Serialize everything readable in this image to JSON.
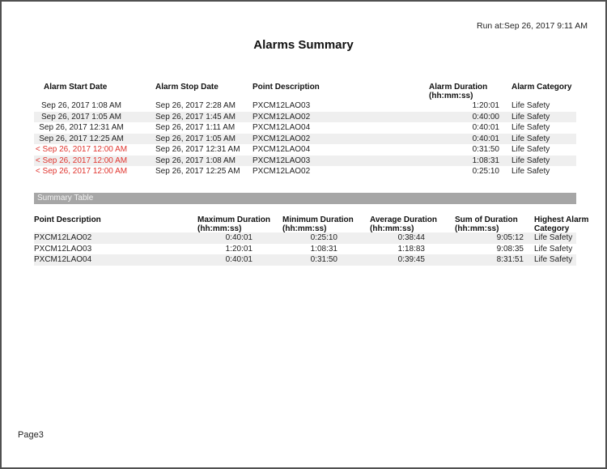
{
  "page": {
    "run_at": "Run at:Sep 26, 2017 9:11 AM",
    "title": "Alarms Summary",
    "page_number": "Page3"
  },
  "colors": {
    "flagged_red": "#e0352f",
    "row_stripe": "#efefef",
    "summary_bar_bg": "#a6a6a6",
    "summary_bar_text": "#f2f2f2",
    "page_border": "#505050"
  },
  "alarms_table": {
    "headers": {
      "start": "Alarm Start Date",
      "stop": "Alarm Stop Date",
      "point": "Point Description",
      "duration_line1": "Alarm Duration",
      "duration_line2": "(hh:mm:ss)",
      "category": "Alarm Category"
    },
    "rows": [
      {
        "start": "Sep 26, 2017 1:08 AM",
        "flagged": false,
        "stop": "Sep 26, 2017 2:28 AM",
        "point": "PXCM12LAO03",
        "duration": "1:20:01",
        "category": "Life Safety"
      },
      {
        "start": "Sep 26, 2017 1:05 AM",
        "flagged": false,
        "stop": "Sep 26, 2017 1:45 AM",
        "point": "PXCM12LAO02",
        "duration": "0:40:00",
        "category": "Life Safety"
      },
      {
        "start": "Sep 26, 2017 12:31 AM",
        "flagged": false,
        "stop": "Sep 26, 2017 1:11 AM",
        "point": "PXCM12LAO04",
        "duration": "0:40:01",
        "category": "Life Safety"
      },
      {
        "start": "Sep 26, 2017 12:25 AM",
        "flagged": false,
        "stop": "Sep 26, 2017 1:05 AM",
        "point": "PXCM12LAO02",
        "duration": "0:40:01",
        "category": "Life Safety"
      },
      {
        "start": "< Sep 26, 2017 12:00 AM",
        "flagged": true,
        "stop": "Sep 26, 2017 12:31 AM",
        "point": "PXCM12LAO04",
        "duration": "0:31:50",
        "category": "Life Safety"
      },
      {
        "start": "< Sep 26, 2017 12:00 AM",
        "flagged": true,
        "stop": "Sep 26, 2017 1:08 AM",
        "point": "PXCM12LAO03",
        "duration": "1:08:31",
        "category": "Life Safety"
      },
      {
        "start": "< Sep 26, 2017 12:00 AM",
        "flagged": true,
        "stop": "Sep 26, 2017 12:25 AM",
        "point": "PXCM12LAO02",
        "duration": "0:25:10",
        "category": "Life Safety"
      }
    ]
  },
  "summary_section": {
    "bar_label": "Summary Table"
  },
  "summary_table": {
    "headers": {
      "point": "Point Description",
      "max_line1": "Maximum Duration",
      "max_line2": "(hh:mm:ss)",
      "min_line1": "Minimum Duration",
      "min_line2": "(hh:mm:ss)",
      "avg_line1": "Average Duration",
      "avg_line2": "(hh:mm:ss)",
      "sum_line1": "Sum of Duration",
      "sum_line2": "(hh:mm:ss)",
      "cat_line1": "Highest Alarm",
      "cat_line2": "Category"
    },
    "rows": [
      {
        "point": "PXCM12LAO02",
        "max": "0:40:01",
        "min": "0:25:10",
        "avg": "0:38:44",
        "sum": "9:05:12",
        "category": "Life Safety"
      },
      {
        "point": "PXCM12LAO03",
        "max": "1:20:01",
        "min": "1:08:31",
        "avg": "1:18:83",
        "sum": "9:08:35",
        "category": "Life Safety"
      },
      {
        "point": "PXCM12LAO04",
        "max": "0:40:01",
        "min": "0:31:50",
        "avg": "0:39:45",
        "sum": "8:31:51",
        "category": "Life Safety"
      }
    ]
  }
}
